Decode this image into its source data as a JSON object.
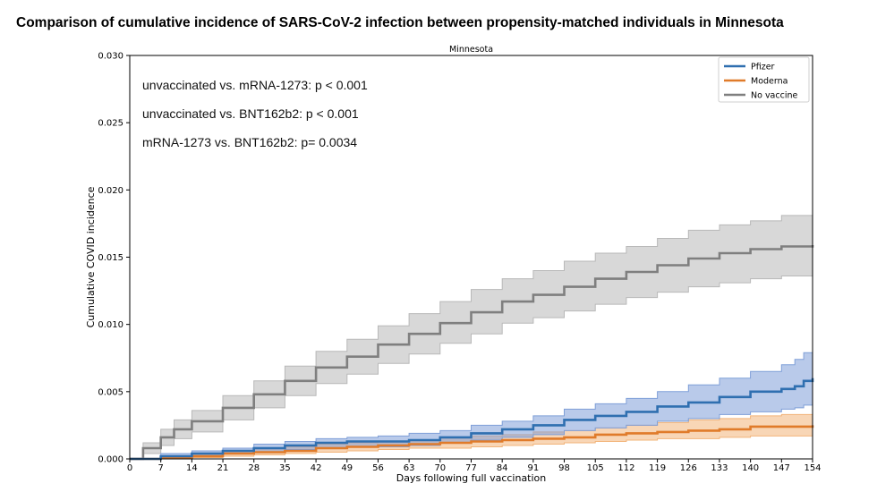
{
  "figure_title": "Comparison of cumulative incidence of SARS-CoV-2 infection between propensity-matched individuals in Minnesota",
  "chart_data": {
    "type": "line",
    "title": "Minnesota",
    "xlabel": "Days following full vaccination",
    "ylabel": "Cumulative COVID incidence",
    "xlim": [
      0,
      154
    ],
    "ylim": [
      0,
      0.03
    ],
    "xticks": [
      0,
      7,
      14,
      21,
      28,
      35,
      42,
      49,
      56,
      63,
      70,
      77,
      84,
      91,
      98,
      105,
      112,
      119,
      126,
      133,
      140,
      147,
      154
    ],
    "xtick_labels": [
      "0",
      "7",
      "14",
      "21",
      "28",
      "35",
      "42",
      "49",
      "56",
      "63",
      "70",
      "77",
      "84",
      "91",
      "98",
      "105",
      "112",
      "119",
      "126",
      "133",
      "140",
      "147",
      "154"
    ],
    "yticks": [
      0,
      0.005,
      0.01,
      0.015,
      0.02,
      0.025,
      0.03
    ],
    "ytick_labels": [
      "0.000",
      "0.005",
      "0.010",
      "0.015",
      "0.020",
      "0.025",
      "0.030"
    ],
    "grid": false,
    "legend_position": "top-right",
    "annotations": [
      "unvaccinated vs. mRNA-1273: p < 0.001",
      "unvaccinated vs. BNT162b2: p < 0.001",
      "mRNA-1273 vs. BNT162b2: p= 0.0034"
    ],
    "series": [
      {
        "name": "Pfizer",
        "color": "#2f6fb0",
        "band_color": "#7f9fd8",
        "x": [
          0,
          7,
          14,
          21,
          28,
          35,
          42,
          49,
          56,
          63,
          70,
          77,
          84,
          91,
          98,
          105,
          112,
          119,
          126,
          133,
          140,
          147,
          150,
          152,
          154
        ],
        "y": [
          0,
          0.0002,
          0.0004,
          0.0006,
          0.0008,
          0.001,
          0.0012,
          0.0013,
          0.0013,
          0.0014,
          0.0016,
          0.0019,
          0.0022,
          0.0025,
          0.0029,
          0.0032,
          0.0035,
          0.0039,
          0.0042,
          0.0046,
          0.005,
          0.0052,
          0.0054,
          0.0058,
          0.006
        ],
        "lower": [
          0,
          0.0001,
          0.0002,
          0.0004,
          0.0005,
          0.0007,
          0.0008,
          0.0009,
          0.0009,
          0.001,
          0.0012,
          0.0014,
          0.0016,
          0.0018,
          0.0021,
          0.0023,
          0.0025,
          0.0028,
          0.003,
          0.0033,
          0.0035,
          0.0037,
          0.0038,
          0.004,
          0.0042
        ],
        "upper": [
          0,
          0.0004,
          0.0006,
          0.0008,
          0.0011,
          0.0013,
          0.0015,
          0.0016,
          0.0017,
          0.0019,
          0.0021,
          0.0025,
          0.0028,
          0.0032,
          0.0037,
          0.0041,
          0.0045,
          0.005,
          0.0055,
          0.006,
          0.0065,
          0.007,
          0.0074,
          0.0079,
          0.0082
        ]
      },
      {
        "name": "Moderna",
        "color": "#e07b2a",
        "band_color": "#f2b47a",
        "x": [
          0,
          7,
          14,
          21,
          28,
          35,
          42,
          49,
          56,
          63,
          70,
          77,
          84,
          91,
          98,
          105,
          112,
          119,
          126,
          133,
          140,
          147,
          154
        ],
        "y": [
          0,
          0.0001,
          0.0002,
          0.0004,
          0.0005,
          0.0006,
          0.0008,
          0.0009,
          0.001,
          0.0011,
          0.0012,
          0.0013,
          0.0014,
          0.0015,
          0.0016,
          0.0018,
          0.0019,
          0.002,
          0.0021,
          0.0022,
          0.0024,
          0.0024,
          0.0025
        ],
        "lower": [
          0,
          0,
          0.0001,
          0.0002,
          0.0003,
          0.0004,
          0.0005,
          0.0006,
          0.0007,
          0.0008,
          0.0008,
          0.0009,
          0.001,
          0.0011,
          0.0012,
          0.0013,
          0.0014,
          0.0015,
          0.0015,
          0.0016,
          0.0017,
          0.0017,
          0.0018
        ],
        "upper": [
          0,
          0.0002,
          0.0004,
          0.0006,
          0.0008,
          0.0009,
          0.0011,
          0.0012,
          0.0013,
          0.0014,
          0.0016,
          0.0017,
          0.0018,
          0.002,
          0.0021,
          0.0023,
          0.0025,
          0.0027,
          0.0029,
          0.003,
          0.0032,
          0.0033,
          0.0034
        ]
      },
      {
        "name": "No vaccine",
        "color": "#7f7f7f",
        "band_color": "#b8b8b8",
        "x": [
          0,
          3,
          7,
          10,
          14,
          21,
          28,
          35,
          42,
          49,
          56,
          63,
          70,
          77,
          84,
          91,
          98,
          105,
          112,
          119,
          126,
          133,
          140,
          147,
          154
        ],
        "y": [
          0,
          0.0008,
          0.0016,
          0.0022,
          0.0028,
          0.0038,
          0.0048,
          0.0058,
          0.0068,
          0.0076,
          0.0085,
          0.0093,
          0.0101,
          0.0109,
          0.0117,
          0.0122,
          0.0128,
          0.0134,
          0.0139,
          0.0144,
          0.0149,
          0.0153,
          0.0156,
          0.0158,
          0.0159
        ],
        "lower": [
          0,
          0.0004,
          0.001,
          0.0015,
          0.002,
          0.0029,
          0.0038,
          0.0047,
          0.0056,
          0.0063,
          0.0071,
          0.0078,
          0.0086,
          0.0093,
          0.0101,
          0.0105,
          0.011,
          0.0115,
          0.012,
          0.0124,
          0.0128,
          0.0131,
          0.0134,
          0.0136,
          0.014
        ],
        "upper": [
          0,
          0.0012,
          0.0022,
          0.0029,
          0.0036,
          0.0047,
          0.0058,
          0.0069,
          0.008,
          0.0089,
          0.0099,
          0.0108,
          0.0117,
          0.0126,
          0.0134,
          0.014,
          0.0147,
          0.0153,
          0.0158,
          0.0164,
          0.017,
          0.0174,
          0.0177,
          0.0181,
          0.0181
        ]
      }
    ]
  }
}
